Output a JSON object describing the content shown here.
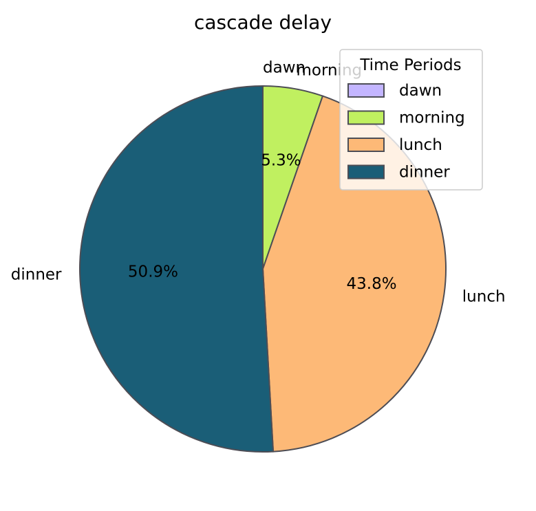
{
  "chart_data": {
    "type": "pie",
    "title": "cascade delay",
    "categories": [
      "dawn",
      "morning",
      "lunch",
      "dinner"
    ],
    "values": [
      0.0,
      5.3,
      43.8,
      50.9
    ],
    "percent_labels": [
      "",
      "5.3%",
      "43.8%",
      "50.9%"
    ],
    "colors": [
      "#c3b5ff",
      "#c0f060",
      "#fdb977",
      "#1a5e77"
    ],
    "edge_color": "#4d4d55",
    "start_angle_deg": 90,
    "direction": "clockwise",
    "legend": {
      "title": "Time Periods",
      "placement": "top-right",
      "entries": [
        "dawn",
        "morning",
        "lunch",
        "dinner"
      ]
    }
  }
}
